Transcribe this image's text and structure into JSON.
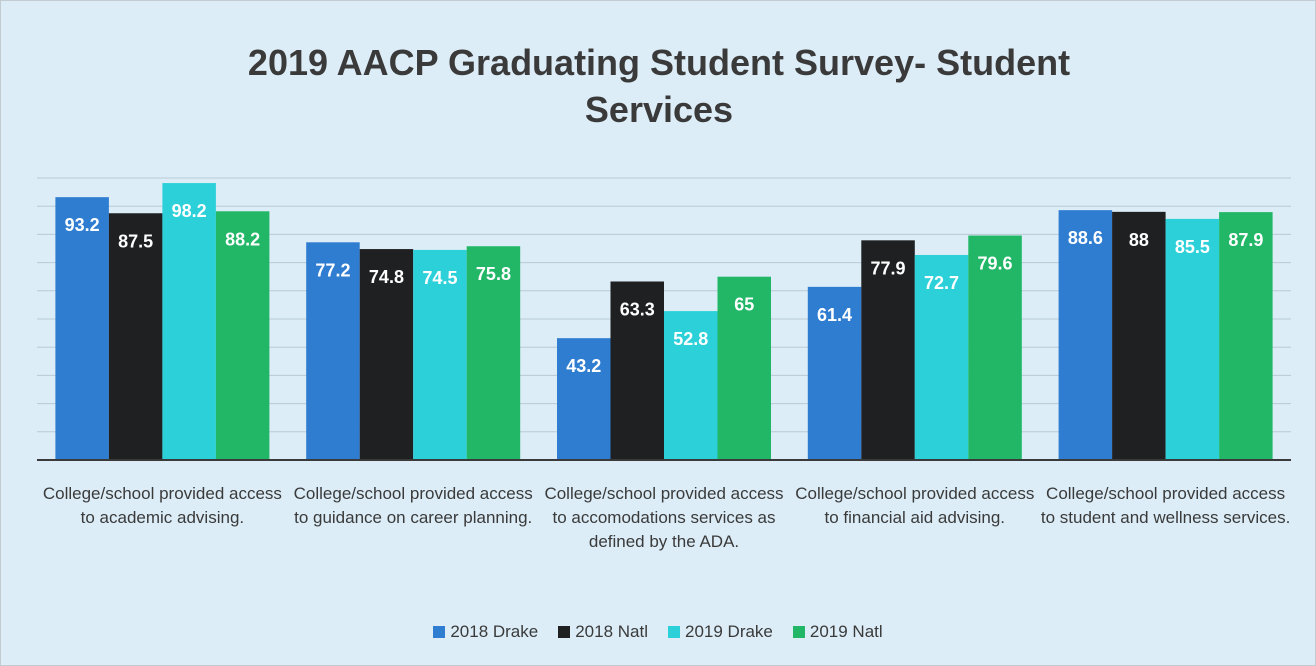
{
  "chart_data": {
    "type": "bar",
    "title": "2019 AACP Graduating Student Survey- Student Services",
    "categories": [
      "College/school provided access to academic advising.",
      "College/school provided access to guidance on career planning.",
      "College/school provided access to accomodations services as defined by the ADA.",
      "College/school provided access to financial aid advising.",
      "College/school provided access to student and wellness services."
    ],
    "series": [
      {
        "name": "2018 Drake",
        "color": "#2f7dd1",
        "values": [
          93.2,
          77.2,
          43.2,
          61.4,
          88.6
        ]
      },
      {
        "name": "2018 Natl",
        "color": "#1f2022",
        "values": [
          87.5,
          74.8,
          63.3,
          77.9,
          88
        ]
      },
      {
        "name": "2019 Drake",
        "color": "#2bd0d9",
        "values": [
          98.2,
          74.5,
          52.8,
          72.7,
          85.5
        ]
      },
      {
        "name": "2019 Natl",
        "color": "#21b766",
        "values": [
          88.2,
          75.8,
          65,
          79.6,
          87.9
        ]
      }
    ],
    "ylim": [
      0,
      100
    ],
    "yticks": [
      0,
      10,
      20,
      30,
      40,
      50,
      60,
      70,
      80,
      90,
      100
    ],
    "grid": true,
    "legend": "bottom"
  }
}
